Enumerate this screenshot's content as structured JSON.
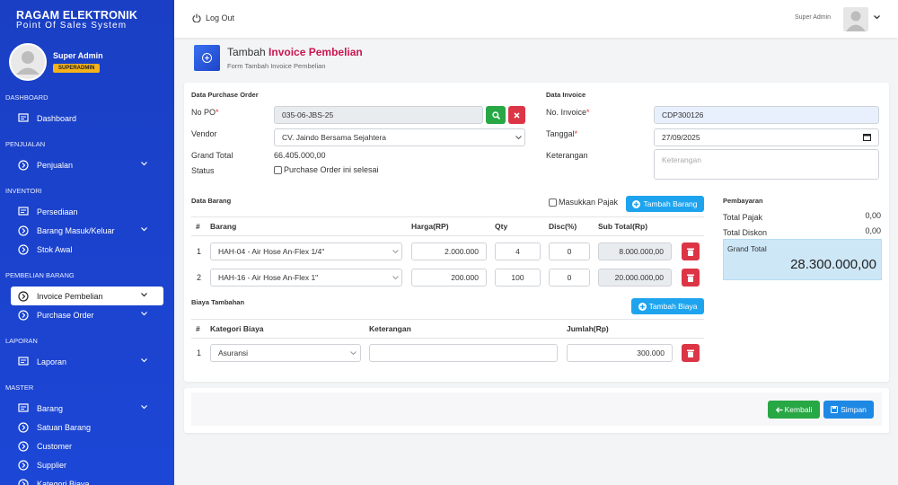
{
  "brand": {
    "name": "RAGAM ELEKTRONIK",
    "tagline": "Point Of Sales System"
  },
  "profile": {
    "name": "Super Admin",
    "role": "SUPERADMIN"
  },
  "sidebar": [
    {
      "title": "DASHBOARD",
      "items": [
        "Dashboard"
      ]
    },
    {
      "title": "PENJUALAN",
      "items": [
        "Penjualan"
      ]
    },
    {
      "title": "INVENTORI",
      "items": [
        "Persediaan",
        "Barang Masuk/Keluar",
        "Stok Awal"
      ]
    },
    {
      "title": "PEMBELIAN BARANG",
      "items": [
        "Invoice Pembelian",
        "Purchase Order"
      ]
    },
    {
      "title": "LAPORAN",
      "items": [
        "Laporan"
      ]
    },
    {
      "title": "MASTER",
      "items": [
        "Barang",
        "Satuan Barang",
        "Customer",
        "Supplier",
        "Kategori Biaya"
      ]
    }
  ],
  "topbar": {
    "logout": "Log Out",
    "user": "Super Admin"
  },
  "header": {
    "title": "Tambah",
    "title_highlight": "Invoice Pembelian",
    "subtitle": "Form Tambah Invoice Pembelian"
  },
  "purchase_order": {
    "title": "Data Purchase Order",
    "no_po": {
      "label": "No PO",
      "required": "*",
      "value": "035-06-JBS-25"
    },
    "vendor": {
      "label": "Vendor",
      "value": "CV. Jaindo Bersama Sejahtera"
    },
    "grand_total": {
      "label": "Grand Total",
      "value": "66.405.000,00"
    },
    "status": {
      "label": "Status",
      "option": "Purchase Order ini selesai"
    }
  },
  "invoice": {
    "title": "Data Invoice",
    "no_invoice": {
      "label": "No. Invoice",
      "required": "*",
      "value": "CDP300126"
    },
    "date": {
      "label": "Tanggal",
      "required": "*",
      "value": "27/09/2025"
    },
    "notes": {
      "label": "Keterangan",
      "placeholder": "Keterangan"
    }
  },
  "items": {
    "title": "Data Barang",
    "tax_option": "Masukkan Pajak",
    "add_button": "Tambah Barang",
    "columns": [
      "#",
      "Barang",
      "Harga(RP)",
      "Qty",
      "Disc(%)",
      "Sub Total(Rp)"
    ],
    "rows": [
      [
        "1",
        "HAH-04 - Air Hose An-Flex 1/4\"",
        "2.000.000",
        "4",
        "0",
        "8.000.000,00"
      ],
      [
        "2",
        "HAH-16 - Air Hose An-Flex 1\"",
        "200.000",
        "100",
        "0",
        "20.000.000,00"
      ]
    ]
  },
  "costs": {
    "title": "Biaya Tambahan",
    "add_button": "Tambah Biaya",
    "columns": [
      "#",
      "Kategori Biaya",
      "Keterangan",
      "Jumlah(Rp)"
    ],
    "rows": [
      {
        "no": "1",
        "category": "Asuransi",
        "amount": "300.000"
      }
    ]
  },
  "payment": {
    "title": "Pembayaran",
    "tax": {
      "label": "Total Pajak",
      "value": "0,00"
    },
    "discount": {
      "label": "Total Diskon",
      "value": "0,00"
    },
    "grand_total": {
      "label": "Grand Total",
      "value": "28.300.000,00"
    }
  },
  "actions": {
    "back": "Kembali",
    "save": "Simpan"
  }
}
